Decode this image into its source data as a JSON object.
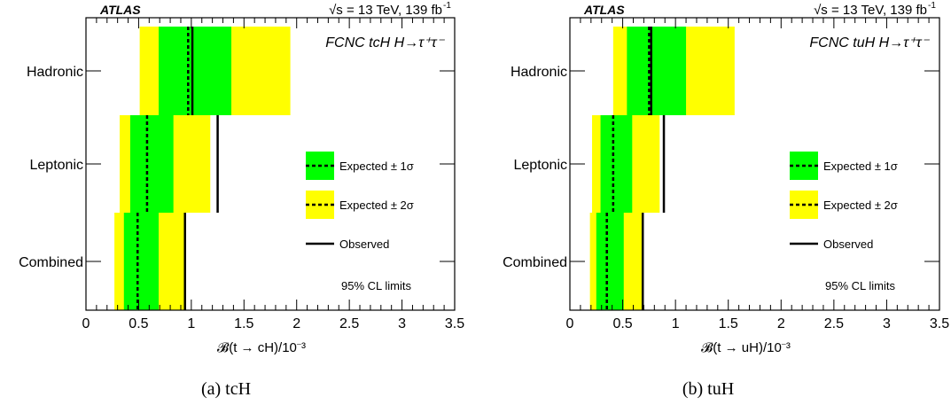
{
  "header": {
    "experiment": "ATLAS",
    "energy_lumi": "√s = 13 TeV, 139 fb",
    "lumi_exponent": "-1"
  },
  "legend": {
    "expected_1sigma": "Expected ± 1σ",
    "expected_2sigma": "Expected ± 2σ",
    "observed": "Observed",
    "cl_note": "95% CL limits"
  },
  "colors": {
    "band_1sigma": "#00ff00",
    "band_2sigma": "#ffff00",
    "line": "#000000"
  },
  "chart_data": [
    {
      "type": "bar",
      "process_label": "FCNC tcH H→τ⁺τ⁻",
      "xlabel": "𝓑(t → cH)/10⁻³",
      "caption": "(a) tcH",
      "xlim": [
        0,
        3.5
      ],
      "x_ticks": [
        "0",
        "0.5",
        "1",
        "1.5",
        "2",
        "2.5",
        "3",
        "3.5"
      ],
      "categories": [
        "Hadronic",
        "Leptonic",
        "Combined"
      ],
      "expected": [
        0.97,
        0.58,
        0.49
      ],
      "minus_1sigma": [
        0.69,
        0.42,
        0.36
      ],
      "plus_1sigma": [
        1.38,
        0.83,
        0.69
      ],
      "minus_2sigma": [
        0.51,
        0.32,
        0.27
      ],
      "plus_2sigma": [
        1.94,
        1.18,
        0.95
      ],
      "observed": [
        1.01,
        1.25,
        0.94
      ]
    },
    {
      "type": "bar",
      "process_label": "FCNC tuH H→τ⁺τ⁻",
      "xlabel": "𝓑(t → uH)/10⁻³",
      "caption": "(b) tuH",
      "xlim": [
        0,
        3.5
      ],
      "x_ticks": [
        "0",
        "0.5",
        "1",
        "1.5",
        "2",
        "2.5",
        "3",
        "3.5"
      ],
      "categories": [
        "Hadronic",
        "Leptonic",
        "Combined"
      ],
      "expected": [
        0.75,
        0.41,
        0.35
      ],
      "minus_1sigma": [
        0.54,
        0.29,
        0.25
      ],
      "plus_1sigma": [
        1.1,
        0.59,
        0.51
      ],
      "minus_2sigma": [
        0.41,
        0.21,
        0.19
      ],
      "plus_2sigma": [
        1.56,
        0.85,
        0.69
      ],
      "observed": [
        0.77,
        0.89,
        0.69
      ]
    }
  ]
}
